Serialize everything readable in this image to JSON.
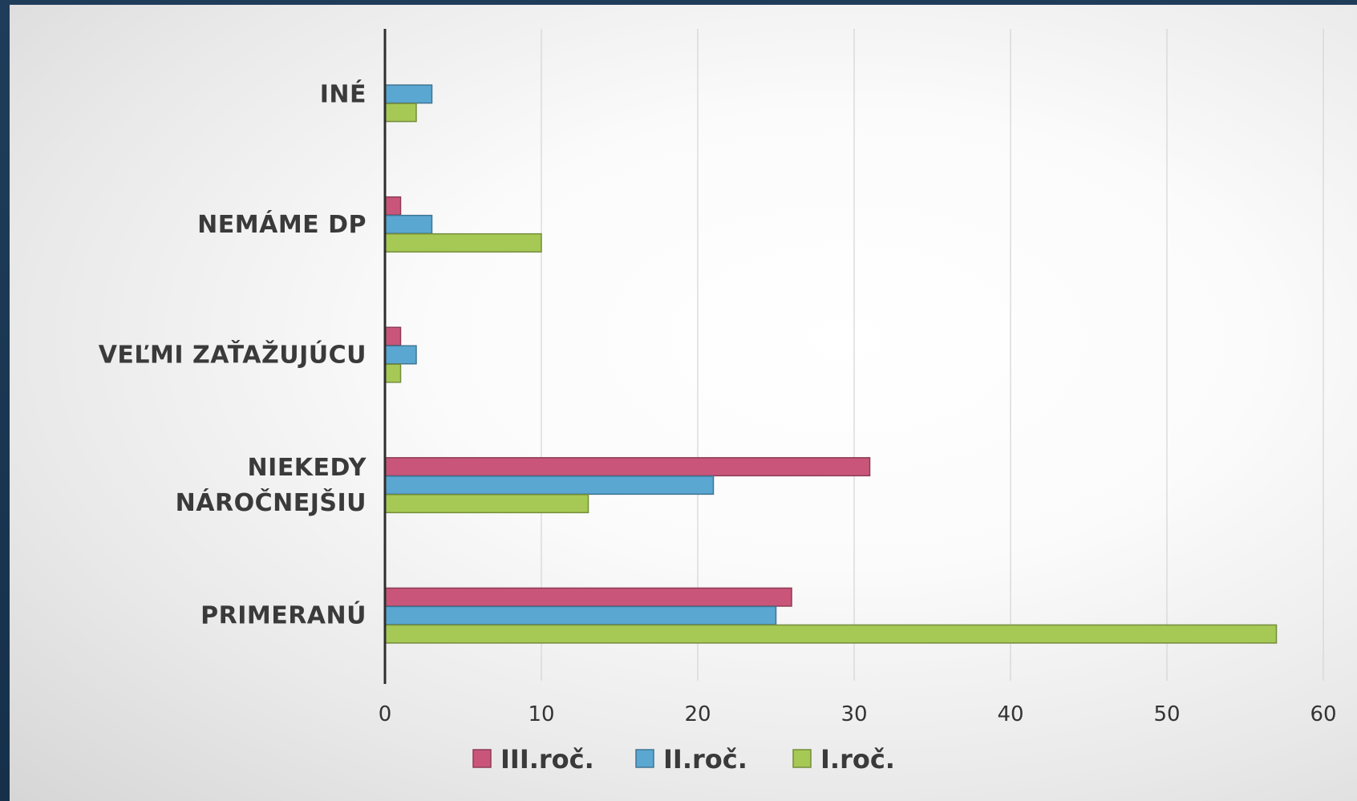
{
  "chart_data": {
    "type": "bar",
    "orientation": "horizontal",
    "categories": [
      "PRIMERANÚ",
      "NIEKEDY NÁROČNEJŠIU",
      "VEĽMI ZAŤAŽUJÚCU",
      "NEMÁME DP",
      "INÉ"
    ],
    "category_label_lines": [
      [
        "PRIMERANÚ"
      ],
      [
        "NIEKEDY",
        "NÁROČNEJŠIU"
      ],
      [
        "VEĽMI ZAŤAŽUJÚCU"
      ],
      [
        "NEMÁME DP"
      ],
      [
        "INÉ"
      ]
    ],
    "series": [
      {
        "name": "III.roč.",
        "color": "#c9567a",
        "values": [
          26,
          31,
          1,
          1,
          0
        ]
      },
      {
        "name": "II.roč.",
        "color": "#5aa7d2",
        "values": [
          25,
          21,
          2,
          3,
          3
        ]
      },
      {
        "name": "I.roč.",
        "color": "#a6c955",
        "values": [
          57,
          13,
          1,
          10,
          2
        ]
      }
    ],
    "xlim": [
      0,
      60
    ],
    "xticks": [
      0,
      10,
      20,
      30,
      40,
      50,
      60
    ],
    "grid": true,
    "legend": "bottom",
    "title": "",
    "xlabel": "",
    "ylabel": ""
  }
}
